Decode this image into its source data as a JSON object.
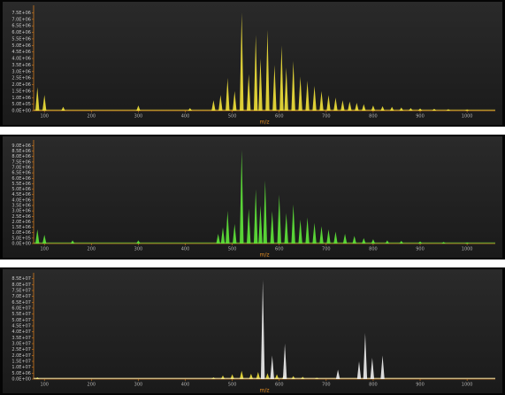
{
  "chart_data": [
    {
      "type": "spectrum",
      "x_label": "m/z",
      "xlim": [
        77,
        1060
      ],
      "xticks": [
        100,
        200,
        300,
        400,
        500,
        600,
        700,
        800,
        900,
        1000
      ],
      "ylim": [
        0,
        7800000
      ],
      "yticks": [
        {
          "value": 0,
          "label": "0.0E+00"
        },
        {
          "value": 500000,
          "label": "5.0E+05"
        },
        {
          "value": 1000000,
          "label": "1.0E+06"
        },
        {
          "value": 1500000,
          "label": "1.5E+06"
        },
        {
          "value": 2000000,
          "label": "2.0E+06"
        },
        {
          "value": 2500000,
          "label": "2.5E+06"
        },
        {
          "value": 3000000,
          "label": "3.0E+06"
        },
        {
          "value": 3500000,
          "label": "3.5E+06"
        },
        {
          "value": 4000000,
          "label": "4.0E+06"
        },
        {
          "value": 4500000,
          "label": "4.5E+06"
        },
        {
          "value": 5000000,
          "label": "5.0E+06"
        },
        {
          "value": 5500000,
          "label": "5.5E+06"
        },
        {
          "value": 6000000,
          "label": "6.0E+06"
        },
        {
          "value": 6500000,
          "label": "6.5E+06"
        },
        {
          "value": 7000000,
          "label": "7.0E+06"
        },
        {
          "value": 7500000,
          "label": "7.5E+06"
        }
      ],
      "series": [
        {
          "color": "#f2e23a",
          "x": [
            85,
            100,
            140,
            300,
            410,
            460,
            475,
            490,
            505,
            520,
            535,
            550,
            560,
            575,
            590,
            605,
            615,
            630,
            645,
            660,
            675,
            690,
            705,
            720,
            735,
            750,
            765,
            780,
            800,
            820,
            840,
            860,
            880,
            900,
            930,
            960,
            1000
          ],
          "values": [
            1800000,
            1200000,
            300000,
            400000,
            200000,
            800000,
            1200000,
            2500000,
            1500000,
            7500000,
            2800000,
            5800000,
            4000000,
            6200000,
            3500000,
            5000000,
            3300000,
            3800000,
            2600000,
            2300000,
            1900000,
            1500000,
            1200000,
            1000000,
            800000,
            700000,
            600000,
            500000,
            400000,
            350000,
            300000,
            250000,
            200000,
            180000,
            150000,
            120000,
            100000
          ]
        }
      ]
    },
    {
      "type": "spectrum",
      "x_label": "m/z",
      "xlim": [
        77,
        1060
      ],
      "xticks": [
        100,
        200,
        300,
        400,
        500,
        600,
        700,
        800,
        900,
        1000
      ],
      "ylim": [
        0,
        9200000
      ],
      "yticks": [
        {
          "value": 0,
          "label": "0.0E+00"
        },
        {
          "value": 500000,
          "label": "5.0E+05"
        },
        {
          "value": 1000000,
          "label": "1.0E+06"
        },
        {
          "value": 1500000,
          "label": "1.5E+06"
        },
        {
          "value": 2000000,
          "label": "2.0E+06"
        },
        {
          "value": 2500000,
          "label": "2.5E+06"
        },
        {
          "value": 3000000,
          "label": "3.0E+06"
        },
        {
          "value": 3500000,
          "label": "3.5E+06"
        },
        {
          "value": 4000000,
          "label": "4.0E+06"
        },
        {
          "value": 4500000,
          "label": "4.5E+06"
        },
        {
          "value": 5000000,
          "label": "5.0E+06"
        },
        {
          "value": 5500000,
          "label": "5.5E+06"
        },
        {
          "value": 6000000,
          "label": "6.0E+06"
        },
        {
          "value": 6500000,
          "label": "6.5E+06"
        },
        {
          "value": 7000000,
          "label": "7.0E+06"
        },
        {
          "value": 7500000,
          "label": "7.5E+06"
        },
        {
          "value": 8000000,
          "label": "8.0E+06"
        },
        {
          "value": 8500000,
          "label": "8.5E+06"
        },
        {
          "value": 9000000,
          "label": "9.0E+06"
        }
      ],
      "series": [
        {
          "color": "#5fe83a",
          "x": [
            85,
            100,
            160,
            300,
            470,
            480,
            490,
            505,
            520,
            535,
            550,
            560,
            570,
            585,
            600,
            615,
            630,
            645,
            660,
            675,
            690,
            705,
            720,
            740,
            760,
            780,
            800,
            830,
            860,
            900,
            950,
            1000
          ],
          "values": [
            1300000,
            800000,
            300000,
            300000,
            900000,
            1500000,
            3000000,
            1800000,
            8600000,
            3200000,
            5000000,
            3500000,
            5800000,
            3000000,
            4500000,
            2800000,
            3600000,
            2200000,
            2400000,
            1900000,
            1600000,
            1300000,
            1100000,
            900000,
            700000,
            500000,
            400000,
            300000,
            250000,
            200000,
            150000,
            100000
          ]
        }
      ]
    },
    {
      "type": "spectrum",
      "x_label": "m/z",
      "xlim": [
        77,
        1060
      ],
      "xticks": [
        100,
        200,
        300,
        400,
        500,
        600,
        700,
        800,
        900,
        1000
      ],
      "ylim": [
        0,
        87000000
      ],
      "yticks": [
        {
          "value": 0,
          "label": "0.0E+00"
        },
        {
          "value": 5000000,
          "label": "5.0E+06"
        },
        {
          "value": 10000000,
          "label": "1.0E+07"
        },
        {
          "value": 15000000,
          "label": "1.5E+07"
        },
        {
          "value": 20000000,
          "label": "2.0E+07"
        },
        {
          "value": 25000000,
          "label": "2.5E+07"
        },
        {
          "value": 30000000,
          "label": "3.0E+07"
        },
        {
          "value": 35000000,
          "label": "3.5E+07"
        },
        {
          "value": 40000000,
          "label": "4.0E+07"
        },
        {
          "value": 45000000,
          "label": "4.5E+07"
        },
        {
          "value": 50000000,
          "label": "5.0E+07"
        },
        {
          "value": 55000000,
          "label": "5.5E+07"
        },
        {
          "value": 60000000,
          "label": "6.0E+07"
        },
        {
          "value": 65000000,
          "label": "6.5E+07"
        },
        {
          "value": 70000000,
          "label": "7.0E+07"
        },
        {
          "value": 75000000,
          "label": "7.5E+07"
        },
        {
          "value": 80000000,
          "label": "8.0E+07"
        },
        {
          "value": 85000000,
          "label": "8.5E+07"
        }
      ],
      "series": [
        {
          "color": "#f2e23a",
          "x": [
            85,
            460,
            480,
            500,
            520,
            540,
            555,
            575,
            595,
            610,
            630,
            650,
            680
          ],
          "values": [
            1500000,
            1500000,
            3000000,
            4000000,
            7000000,
            4500000,
            6000000,
            5000000,
            4000000,
            3500000,
            2500000,
            2000000,
            1200000
          ]
        },
        {
          "color": "#f0f0f0",
          "x": [
            565,
            585,
            612,
            725,
            770,
            783,
            798,
            820
          ],
          "values": [
            84000000,
            20000000,
            30000000,
            8000000,
            15000000,
            39000000,
            18000000,
            20000000
          ]
        }
      ]
    }
  ]
}
